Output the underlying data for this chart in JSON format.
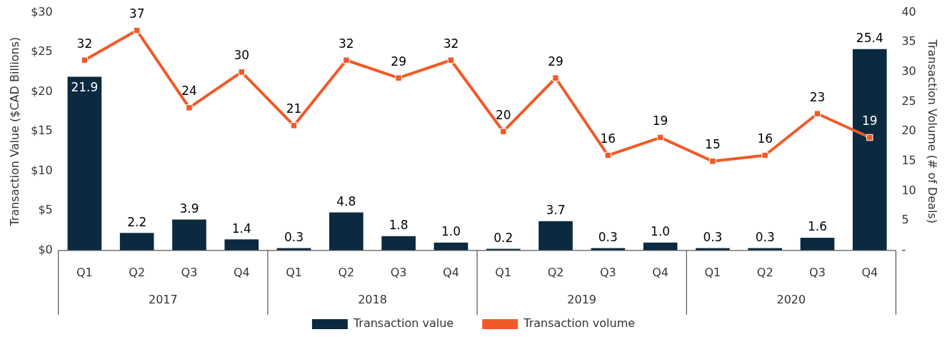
{
  "chart_data": {
    "type": "bar",
    "categories": [
      "Q1",
      "Q2",
      "Q3",
      "Q4",
      "Q1",
      "Q2",
      "Q3",
      "Q4",
      "Q1",
      "Q2",
      "Q3",
      "Q4",
      "Q1",
      "Q2",
      "Q3",
      "Q4"
    ],
    "annotations": [
      "2017",
      "2018",
      "2019",
      "2020"
    ],
    "ylabel": "Transaction Value ($CAD Billions)",
    "y2label": "Transaction Volume (# of Deals)",
    "ylim": [
      0,
      30
    ],
    "yticks": [
      {
        "value": 0,
        "label": "$0"
      },
      {
        "value": 5,
        "label": "$5"
      },
      {
        "value": 10,
        "label": "$10"
      },
      {
        "value": 15,
        "label": "$15"
      },
      {
        "value": 20,
        "label": "$20"
      },
      {
        "value": 25,
        "label": "$25"
      },
      {
        "value": 30,
        "label": "$30"
      }
    ],
    "y2lim": [
      0,
      40
    ],
    "y2ticks": [
      {
        "value": 0,
        "label": "-"
      },
      5,
      10,
      15,
      20,
      25,
      30,
      35,
      40
    ],
    "series": [
      {
        "name": "Transaction value",
        "color": "#0b2a40",
        "values": [
          21.9,
          2.2,
          3.9,
          1.4,
          0.3,
          4.8,
          1.8,
          1.0,
          0.2,
          3.7,
          0.3,
          1.0,
          0.3,
          0.3,
          1.6,
          25.4
        ],
        "value_labels": [
          "21.9",
          "2.2",
          "3.9",
          "1.4",
          "0.3",
          "4.8",
          "1.8",
          "1.0",
          "0.2",
          "3.7",
          "0.3",
          "1.0",
          "0.3",
          "0.3",
          "1.6",
          "25.4"
        ]
      },
      {
        "name": "Transaction volume",
        "type": "line",
        "axis": "y2",
        "color": "#f05a28",
        "marker": "square",
        "values": [
          32,
          37,
          24,
          30,
          21,
          32,
          29,
          32,
          20,
          29,
          16,
          19,
          15,
          16,
          23,
          19
        ]
      }
    ],
    "data_labels": true,
    "grid": false,
    "legend": "bottom"
  }
}
